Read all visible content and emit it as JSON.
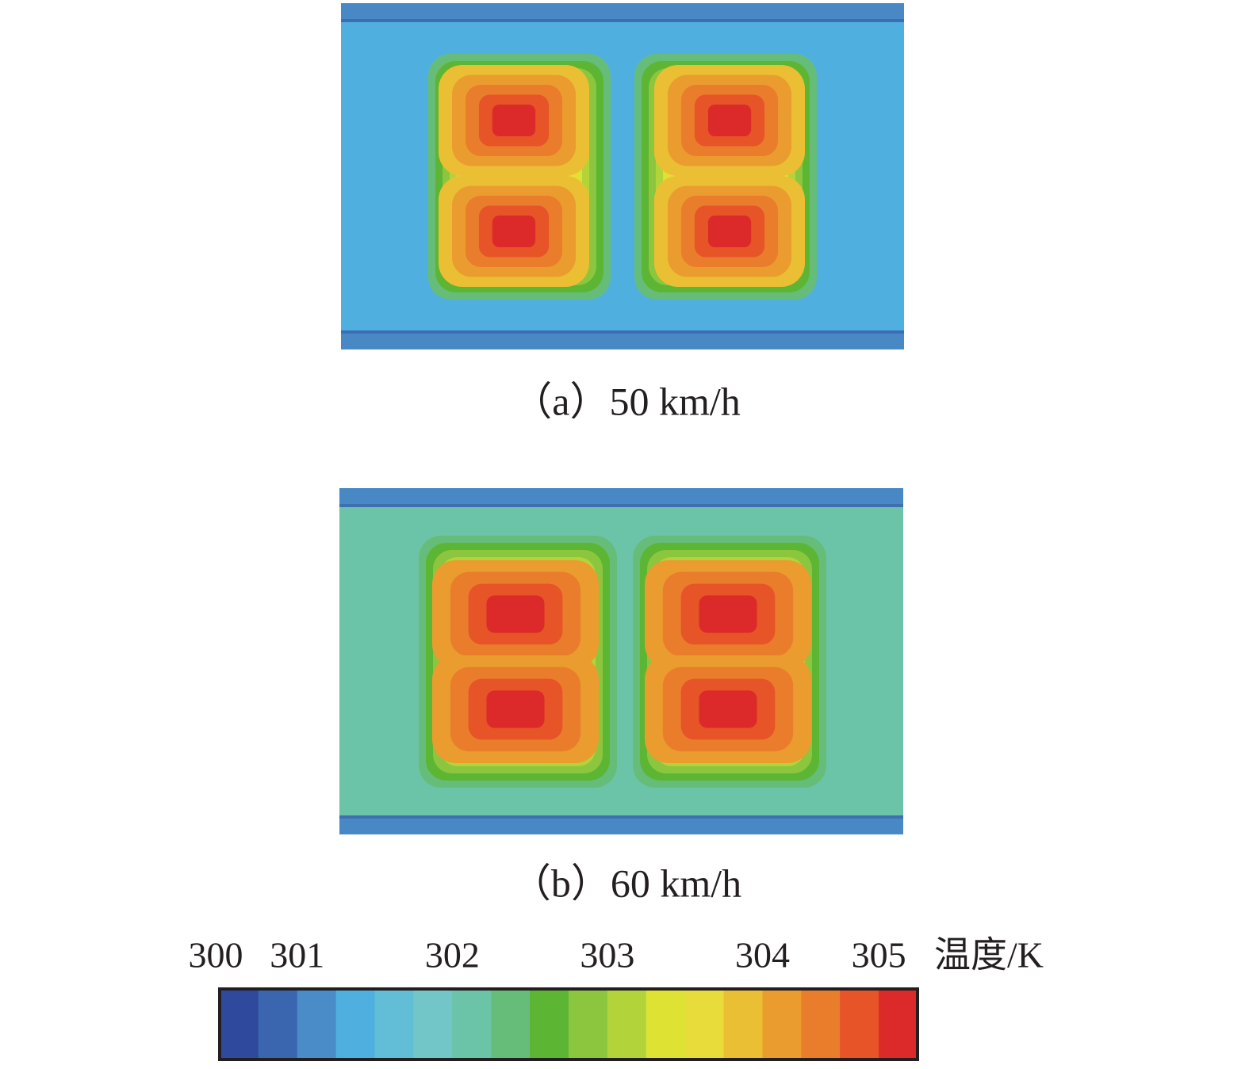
{
  "chart_data": {
    "type": "contour",
    "panels": [
      {
        "caption": "（a）50 km/h"
      },
      {
        "caption": "（b）60 km/h"
      }
    ],
    "colorbar": {
      "label": "温度/K",
      "colors": [
        "#2f4a9c",
        "#3a66b0",
        "#4a8cc8",
        "#4fb0e0",
        "#62bdd6",
        "#72c6c8",
        "#6cc4a8",
        "#66bd7a",
        "#5db534",
        "#8cc63e",
        "#b2d43a",
        "#dde233",
        "#e8dc3a",
        "#ebbf34",
        "#eb9c2e",
        "#ea7d2c",
        "#e65428",
        "#dc2a2a"
      ],
      "boundaries": [
        300,
        300.5,
        301,
        301.25,
        301.5,
        301.75,
        302,
        302.25,
        302.5,
        302.75,
        303,
        303.25,
        303.5,
        303.75,
        304,
        304.33,
        304.67,
        305,
        305.33
      ],
      "ticks": [
        300,
        301,
        302,
        303,
        304,
        305
      ]
    }
  }
}
